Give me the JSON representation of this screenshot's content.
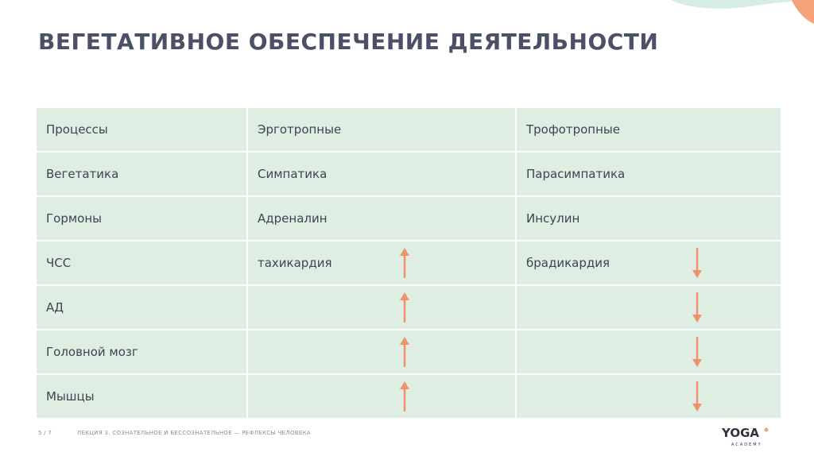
{
  "slide": {
    "title": "ВЕГЕТАТИВНОЕ ОБЕСПЕЧЕНИЕ ДЕЯТЕЛЬНОСТИ",
    "colors": {
      "title": "#4a5068",
      "cell_bg": "#dfeee2",
      "arrow": "#f0936b",
      "deco_green": "#d7ece4",
      "deco_orange": "#f4a27a"
    }
  },
  "table": {
    "rows": [
      {
        "label": "Процессы",
        "ergo": "Эрготропные",
        "tropho": "Трофотропные",
        "arrows": false
      },
      {
        "label": "Вегетатика",
        "ergo": "Симпатика",
        "tropho": "Парасимпатика",
        "arrows": false
      },
      {
        "label": "Гормоны",
        "ergo": "Адреналин",
        "tropho": "Инсулин",
        "arrows": false
      },
      {
        "label": "ЧСС",
        "ergo": "тахикардия",
        "tropho": "брадикардия",
        "arrows": true
      },
      {
        "label": "АД",
        "ergo": "",
        "tropho": "",
        "arrows": true
      },
      {
        "label": "Головной мозг",
        "ergo": "",
        "tropho": "",
        "arrows": true
      },
      {
        "label": "Мышцы",
        "ergo": "",
        "tropho": "",
        "arrows": true
      }
    ],
    "arrow_icons": {
      "ergo": "arrow-up-icon",
      "tropho": "arrow-down-icon"
    }
  },
  "footer": {
    "page": "5 / 7",
    "lecture": "ЛЕКЦИЯ 3. СОЗНАТЕЛЬНОЕ И БЕССОЗНАТЕЛЬНОЕ — РЕФЛЕКСЫ ЧЕЛОВЕКА",
    "logo_text": "YOGA",
    "logo_sub": "ACADEMY"
  }
}
